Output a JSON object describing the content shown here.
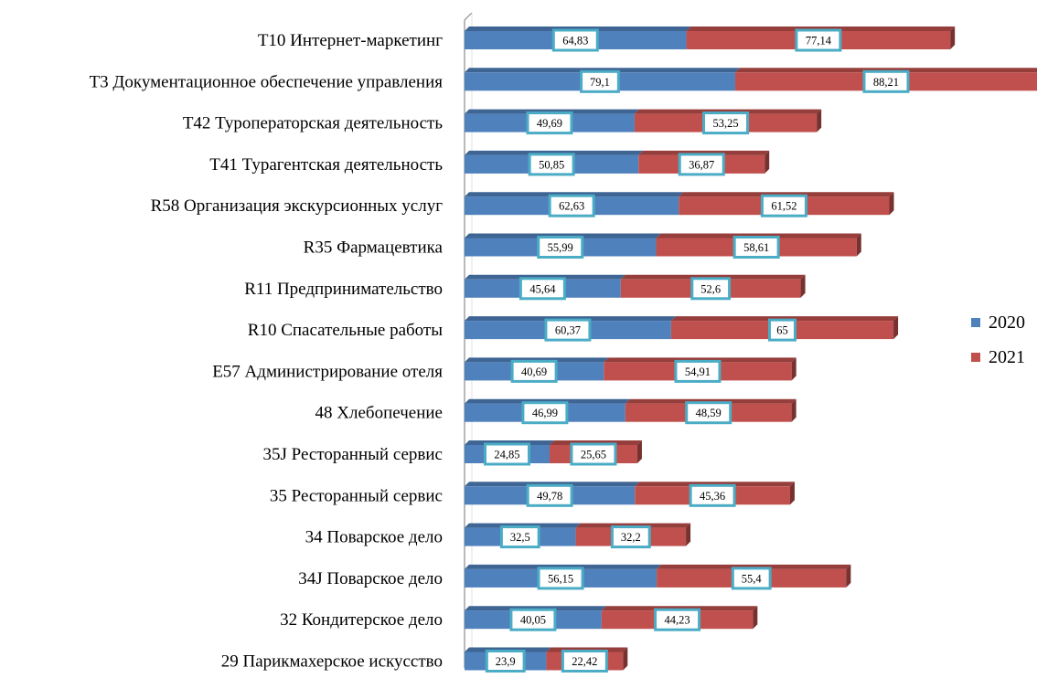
{
  "chart_data": {
    "type": "bar",
    "orientation": "horizontal",
    "stacked": true,
    "categories": [
      "T10 Интернет-маркетинг",
      "T3  Документационное обеспечение управления",
      "T42 Туроператорская  деятельность",
      "T41 Турагентская  деятельность",
      "R58 Организация  экскурсионных  услуг",
      "R35 Фармацевтика",
      "R11 Предпринимательство",
      "R10 Спасательные работы",
      "E57 Администрирование  отеля",
      "48 Хлебопечение",
      "35J Ресторанный сервис",
      "35 Ресторанный сервис",
      "34 Поварское дело",
      "34J  Поварское дело",
      "32 Кондитерское дело",
      "29 Парикмахерское искусство"
    ],
    "series": [
      {
        "name": "2020",
        "color": "#4f81bd",
        "values": [
          64.83,
          79.1,
          49.69,
          50.85,
          62.63,
          55.99,
          45.64,
          60.37,
          40.69,
          46.99,
          24.85,
          49.78,
          32.5,
          56.15,
          40.05,
          23.9
        ],
        "labels": [
          "64,83",
          "79,1",
          "49,69",
          "50,85",
          "62,63",
          "55,99",
          "45,64",
          "60,37",
          "40,69",
          "46,99",
          "24,85",
          "49,78",
          "32,5",
          "56,15",
          "40,05",
          "23,9"
        ]
      },
      {
        "name": "2021",
        "color": "#c0504d",
        "values": [
          77.14,
          88.21,
          53.25,
          36.87,
          61.52,
          58.61,
          52.6,
          65,
          54.91,
          48.59,
          25.65,
          45.36,
          32.2,
          55.4,
          44.23,
          22.42
        ],
        "labels": [
          "77,14",
          "88,21",
          "53,25",
          "36,87",
          "61,52",
          "58,61",
          "52,6",
          "65",
          "54,91",
          "48,59",
          "25,65",
          "45,36",
          "32,2",
          "55,4",
          "44,23",
          "22,42"
        ]
      }
    ],
    "legend": {
      "position": "right",
      "entries": [
        "2020",
        "2021"
      ]
    },
    "label_box_color": "#4bacc6",
    "grid": false,
    "xlim": [
      0,
      167.31
    ]
  }
}
